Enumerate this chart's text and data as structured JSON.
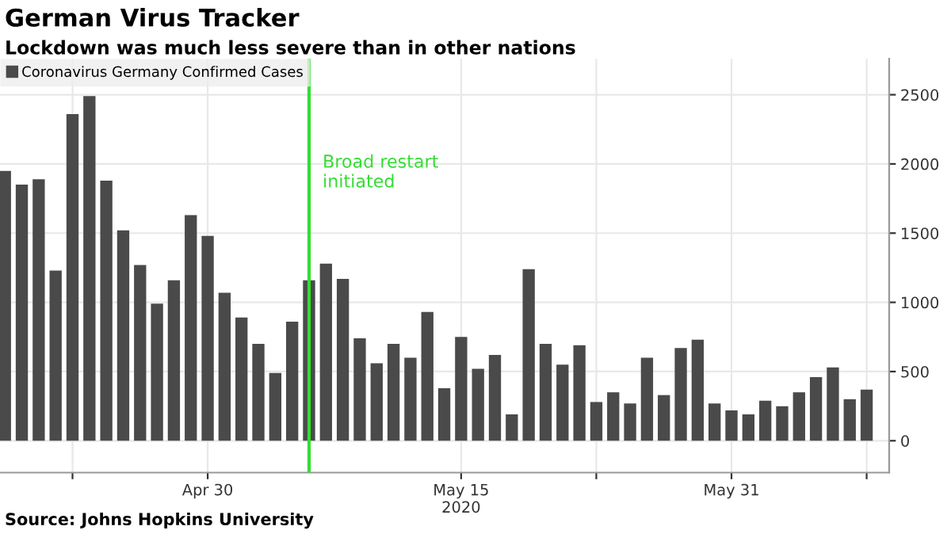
{
  "chart_data": {
    "type": "bar",
    "title": "German Virus Tracker",
    "subtitle": "Lockdown was much less severe than in other nations",
    "x": [
      "2020-04-18",
      "2020-04-19",
      "2020-04-20",
      "2020-04-21",
      "2020-04-22",
      "2020-04-23",
      "2020-04-24",
      "2020-04-25",
      "2020-04-26",
      "2020-04-27",
      "2020-04-28",
      "2020-04-29",
      "2020-04-30",
      "2020-05-01",
      "2020-05-02",
      "2020-05-03",
      "2020-05-04",
      "2020-05-05",
      "2020-05-06",
      "2020-05-07",
      "2020-05-08",
      "2020-05-09",
      "2020-05-10",
      "2020-05-11",
      "2020-05-12",
      "2020-05-13",
      "2020-05-14",
      "2020-05-15",
      "2020-05-16",
      "2020-05-17",
      "2020-05-18",
      "2020-05-19",
      "2020-05-20",
      "2020-05-21",
      "2020-05-22",
      "2020-05-23",
      "2020-05-24",
      "2020-05-25",
      "2020-05-26",
      "2020-05-27",
      "2020-05-28",
      "2020-05-29",
      "2020-05-30",
      "2020-05-31",
      "2020-06-01",
      "2020-06-02",
      "2020-06-03",
      "2020-06-04",
      "2020-06-05",
      "2020-06-06",
      "2020-06-07",
      "2020-06-08"
    ],
    "series": [
      {
        "name": "Coronavirus Germany Confirmed Cases",
        "color": "#4a4a4a",
        "values": [
          1950,
          1850,
          1890,
          1230,
          2360,
          2490,
          1880,
          1520,
          1270,
          990,
          1160,
          1630,
          1480,
          1070,
          890,
          700,
          490,
          860,
          1160,
          1280,
          1170,
          740,
          560,
          700,
          600,
          930,
          380,
          750,
          520,
          620,
          190,
          1240,
          700,
          550,
          690,
          280,
          350,
          270,
          600,
          330,
          670,
          730,
          270,
          220,
          190,
          290,
          250,
          350,
          460,
          530,
          300,
          370
        ]
      }
    ],
    "xlim": [
      "2020-04-17T17:00",
      "2020-06-09T08:00"
    ],
    "xticks": [
      {
        "value": "2020-04-22",
        "label": null
      },
      {
        "value": "2020-04-30",
        "label": "Apr 30"
      },
      {
        "value": "2020-05-15",
        "label": "May 15\n2020"
      },
      {
        "value": "2020-05-23",
        "label": null
      },
      {
        "value": "2020-05-31",
        "label": "May 31"
      },
      {
        "value": "2020-06-08",
        "label": null
      }
    ],
    "ylim": [
      -230,
      2760
    ],
    "yticks": [
      0,
      500,
      1000,
      1500,
      2000,
      2500
    ],
    "grid": true,
    "legend": "top left",
    "ref_lines": [
      {
        "axis": "x",
        "value": "2020-05-06",
        "label": "Broad restart\ninitiated",
        "color": "#33dd33"
      }
    ],
    "annotations": [
      "Source: Johns Hopkins University"
    ]
  }
}
